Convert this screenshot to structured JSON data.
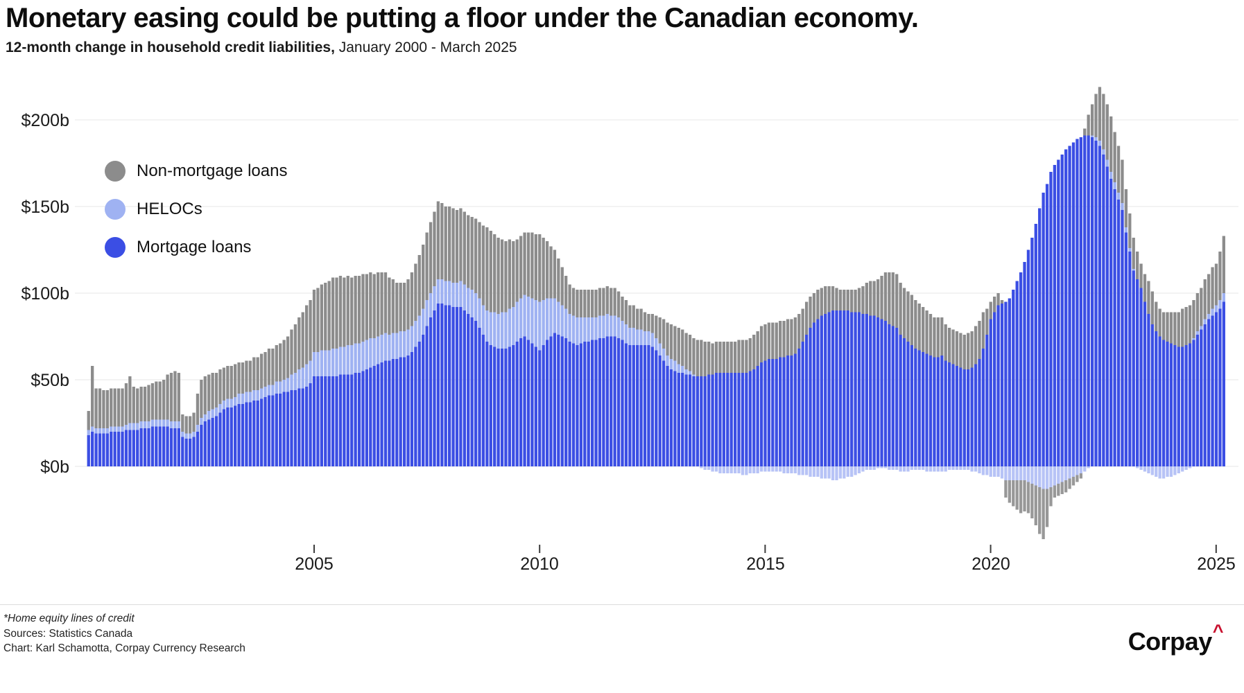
{
  "header": {
    "title": "Monetary easing could be putting a floor under the Canadian economy.",
    "subtitle_bold": "12-month change in household credit liabilities,",
    "subtitle_rest": " January 2000 - March 2025"
  },
  "legend": {
    "items": [
      {
        "label": "Non-mortgage loans",
        "color": "#8c8c8c"
      },
      {
        "label": "HELOCs",
        "color": "#9fb2f2"
      },
      {
        "label": "Mortgage loans",
        "color": "#3b4ee4"
      }
    ]
  },
  "axes": {
    "y_ticks": [
      "$200b",
      "$150b",
      "$100b",
      "$50b",
      "$0b"
    ],
    "x_ticks": [
      "2005",
      "2010",
      "2015",
      "2020",
      "2025"
    ]
  },
  "footer": {
    "note": "*Home equity lines of credit",
    "sources": "Sources: Statistics Canada",
    "credit": "Chart: Karl Schamotta, Corpay Currency Research",
    "logo_text": "Corpay",
    "logo_caret": "^"
  },
  "colors": {
    "mortgage": "#3b4ee4",
    "heloc": "#9fb2f2",
    "heloc_negative": "#b7c3f6",
    "nonmortgage": "#8c8c8c",
    "nonmortgage_negative": "#989898",
    "gridline": "#e7e7e7",
    "tick": "#3c3c3c",
    "logo_caret_color": "#c8102e"
  },
  "chart_data": {
    "type": "bar",
    "stacked": true,
    "frequency": "monthly",
    "x_start": "2000-01",
    "x_end": "2025-03",
    "unit": "CAD billions (12-month change)",
    "ylim": [
      -45,
      225
    ],
    "y_gridlines_b": [
      0,
      50,
      100,
      150,
      200
    ],
    "grid": true,
    "legend_position": "top-left-inside",
    "series": [
      {
        "name": "Mortgage loans",
        "values": [
          18,
          20,
          19,
          19,
          19,
          19,
          20,
          20,
          20,
          20,
          21,
          21,
          21,
          21,
          22,
          22,
          22,
          23,
          23,
          23,
          23,
          23,
          22,
          22,
          22,
          17,
          16,
          16,
          17,
          20,
          24,
          26,
          27,
          28,
          29,
          31,
          33,
          34,
          34,
          35,
          36,
          36,
          37,
          37,
          38,
          38,
          39,
          40,
          41,
          41,
          42,
          42,
          43,
          43,
          44,
          44,
          45,
          45,
          46,
          48,
          52,
          52,
          52,
          52,
          52,
          52,
          52,
          53,
          53,
          53,
          53,
          54,
          54,
          55,
          56,
          57,
          58,
          59,
          60,
          61,
          61,
          62,
          62,
          63,
          63,
          64,
          66,
          69,
          72,
          76,
          81,
          86,
          90,
          94,
          94,
          93,
          93,
          92,
          92,
          92,
          90,
          88,
          86,
          84,
          80,
          76,
          72,
          70,
          69,
          68,
          68,
          68,
          69,
          70,
          72,
          74,
          75,
          73,
          71,
          69,
          67,
          70,
          73,
          75,
          77,
          76,
          75,
          74,
          72,
          71,
          70,
          71,
          72,
          72,
          73,
          73,
          74,
          74,
          75,
          75,
          75,
          74,
          73,
          71,
          70,
          70,
          70,
          70,
          70,
          70,
          69,
          67,
          64,
          61,
          58,
          56,
          55,
          54,
          54,
          53,
          53,
          52,
          52,
          52,
          52,
          53,
          53,
          54,
          54,
          54,
          54,
          54,
          54,
          54,
          54,
          54,
          55,
          56,
          58,
          60,
          61,
          62,
          62,
          62,
          63,
          63,
          64,
          64,
          65,
          68,
          72,
          76,
          80,
          83,
          85,
          87,
          88,
          89,
          90,
          90,
          90,
          90,
          90,
          89,
          89,
          89,
          88,
          88,
          87,
          87,
          86,
          85,
          84,
          82,
          81,
          80,
          76,
          74,
          72,
          70,
          68,
          67,
          66,
          65,
          64,
          63,
          63,
          64,
          61,
          60,
          59,
          58,
          57,
          56,
          56,
          57,
          59,
          62,
          68,
          76,
          85,
          89,
          93,
          94,
          95,
          97,
          102,
          107,
          112,
          118,
          125,
          132,
          140,
          149,
          158,
          163,
          170,
          174,
          177,
          180,
          183,
          185,
          187,
          189,
          190,
          191,
          191,
          190,
          188,
          185,
          180,
          173,
          166,
          160,
          154,
          148,
          135,
          124,
          113,
          108,
          103,
          95,
          88,
          82,
          78,
          75,
          73,
          72,
          71,
          70,
          69,
          69,
          70,
          71,
          73,
          76,
          79,
          82,
          85,
          87,
          89,
          91,
          95
        ]
      },
      {
        "name": "HELOCs",
        "values": [
          3,
          3,
          3,
          3,
          3,
          3,
          3,
          3,
          3,
          3,
          3,
          4,
          4,
          4,
          4,
          4,
          4,
          4,
          4,
          4,
          4,
          4,
          4,
          4,
          4,
          3,
          3,
          3,
          3,
          4,
          4,
          4,
          5,
          5,
          5,
          5,
          5,
          5,
          5,
          5,
          6,
          6,
          6,
          6,
          6,
          6,
          6,
          6,
          6,
          6,
          7,
          7,
          7,
          8,
          9,
          10,
          11,
          12,
          13,
          13,
          14,
          14,
          15,
          15,
          15,
          16,
          16,
          16,
          16,
          17,
          17,
          17,
          17,
          17,
          17,
          17,
          16,
          16,
          16,
          16,
          15,
          15,
          15,
          15,
          15,
          15,
          15,
          15,
          15,
          15,
          15,
          14,
          14,
          14,
          14,
          14,
          14,
          14,
          14,
          15,
          15,
          15,
          16,
          16,
          17,
          17,
          18,
          19,
          20,
          20,
          21,
          21,
          22,
          22,
          23,
          23,
          24,
          25,
          26,
          27,
          28,
          26,
          24,
          22,
          20,
          19,
          18,
          17,
          16,
          16,
          16,
          15,
          14,
          14,
          13,
          13,
          13,
          13,
          13,
          12,
          12,
          12,
          11,
          11,
          10,
          10,
          9,
          9,
          8,
          8,
          8,
          7,
          7,
          7,
          6,
          6,
          6,
          5,
          4,
          3,
          2,
          1,
          0,
          -1,
          -2,
          -2,
          -3,
          -3,
          -4,
          -4,
          -4,
          -4,
          -4,
          -4,
          -5,
          -5,
          -4,
          -4,
          -4,
          -3,
          -3,
          -3,
          -3,
          -3,
          -3,
          -4,
          -4,
          -4,
          -4,
          -5,
          -5,
          -5,
          -6,
          -6,
          -6,
          -7,
          -7,
          -7,
          -8,
          -8,
          -7,
          -7,
          -6,
          -6,
          -5,
          -4,
          -3,
          -2,
          -2,
          -2,
          -1,
          -1,
          -1,
          -2,
          -2,
          -2,
          -3,
          -3,
          -3,
          -2,
          -2,
          -2,
          -2,
          -3,
          -3,
          -3,
          -3,
          -3,
          -3,
          -2,
          -2,
          -2,
          -2,
          -2,
          -2,
          -3,
          -3,
          -4,
          -5,
          -5,
          -6,
          -6,
          -6,
          -7,
          -8,
          -8,
          -8,
          -8,
          -8,
          -8,
          -9,
          -10,
          -11,
          -12,
          -13,
          -13,
          -12,
          -11,
          -10,
          -9,
          -8,
          -7,
          -6,
          -5,
          -4,
          -3,
          -1,
          1,
          2,
          3,
          3,
          4,
          4,
          4,
          4,
          4,
          3,
          2,
          1,
          -1,
          -2,
          -3,
          -4,
          -5,
          -6,
          -7,
          -7,
          -6,
          -6,
          -5,
          -4,
          -3,
          -2,
          -1,
          1,
          2,
          2,
          3,
          3,
          4,
          4,
          5,
          5
        ]
      },
      {
        "name": "Non-mortgage loans",
        "values": [
          11,
          35,
          23,
          23,
          22,
          22,
          22,
          22,
          22,
          22,
          24,
          27,
          21,
          20,
          20,
          20,
          21,
          21,
          22,
          22,
          23,
          26,
          28,
          29,
          28,
          10,
          10,
          10,
          11,
          18,
          22,
          22,
          21,
          21,
          20,
          20,
          19,
          19,
          19,
          19,
          18,
          18,
          18,
          18,
          19,
          19,
          20,
          20,
          21,
          21,
          21,
          22,
          23,
          24,
          26,
          28,
          30,
          32,
          34,
          35,
          36,
          37,
          38,
          39,
          40,
          41,
          41,
          41,
          40,
          40,
          39,
          39,
          39,
          39,
          38,
          38,
          37,
          37,
          36,
          35,
          33,
          31,
          29,
          28,
          28,
          29,
          31,
          33,
          35,
          37,
          39,
          41,
          43,
          45,
          44,
          43,
          43,
          43,
          42,
          42,
          42,
          42,
          42,
          43,
          44,
          46,
          48,
          47,
          45,
          44,
          42,
          41,
          40,
          38,
          36,
          36,
          36,
          37,
          38,
          38,
          39,
          36,
          33,
          30,
          28,
          25,
          22,
          19,
          17,
          16,
          16,
          16,
          16,
          16,
          16,
          16,
          16,
          16,
          16,
          16,
          16,
          15,
          14,
          14,
          13,
          13,
          12,
          12,
          11,
          10,
          11,
          13,
          15,
          17,
          19,
          20,
          20,
          21,
          21,
          21,
          21,
          21,
          21,
          21,
          20,
          19,
          18,
          18,
          18,
          18,
          18,
          18,
          18,
          19,
          19,
          19,
          19,
          20,
          20,
          21,
          21,
          21,
          21,
          21,
          21,
          21,
          21,
          21,
          21,
          20,
          19,
          19,
          18,
          17,
          17,
          16,
          16,
          15,
          14,
          13,
          12,
          12,
          12,
          13,
          13,
          14,
          16,
          18,
          20,
          20,
          22,
          25,
          28,
          30,
          31,
          31,
          30,
          29,
          29,
          29,
          28,
          27,
          26,
          25,
          24,
          23,
          23,
          22,
          21,
          20,
          20,
          20,
          20,
          20,
          21,
          21,
          22,
          22,
          21,
          15,
          10,
          9,
          7,
          2,
          -10,
          -13,
          -15,
          -17,
          -19,
          -18,
          -18,
          -20,
          -23,
          -27,
          -29,
          -22,
          -11,
          -7,
          -7,
          -7,
          -7,
          -6,
          -5,
          -4,
          -3,
          4,
          12,
          18,
          25,
          31,
          32,
          32,
          32,
          29,
          27,
          25,
          22,
          20,
          18,
          16,
          14,
          16,
          19,
          19,
          17,
          16,
          16,
          17,
          18,
          19,
          20,
          22,
          22,
          22,
          22,
          22,
          22,
          23,
          23,
          24,
          24,
          28,
          33
        ]
      }
    ]
  }
}
